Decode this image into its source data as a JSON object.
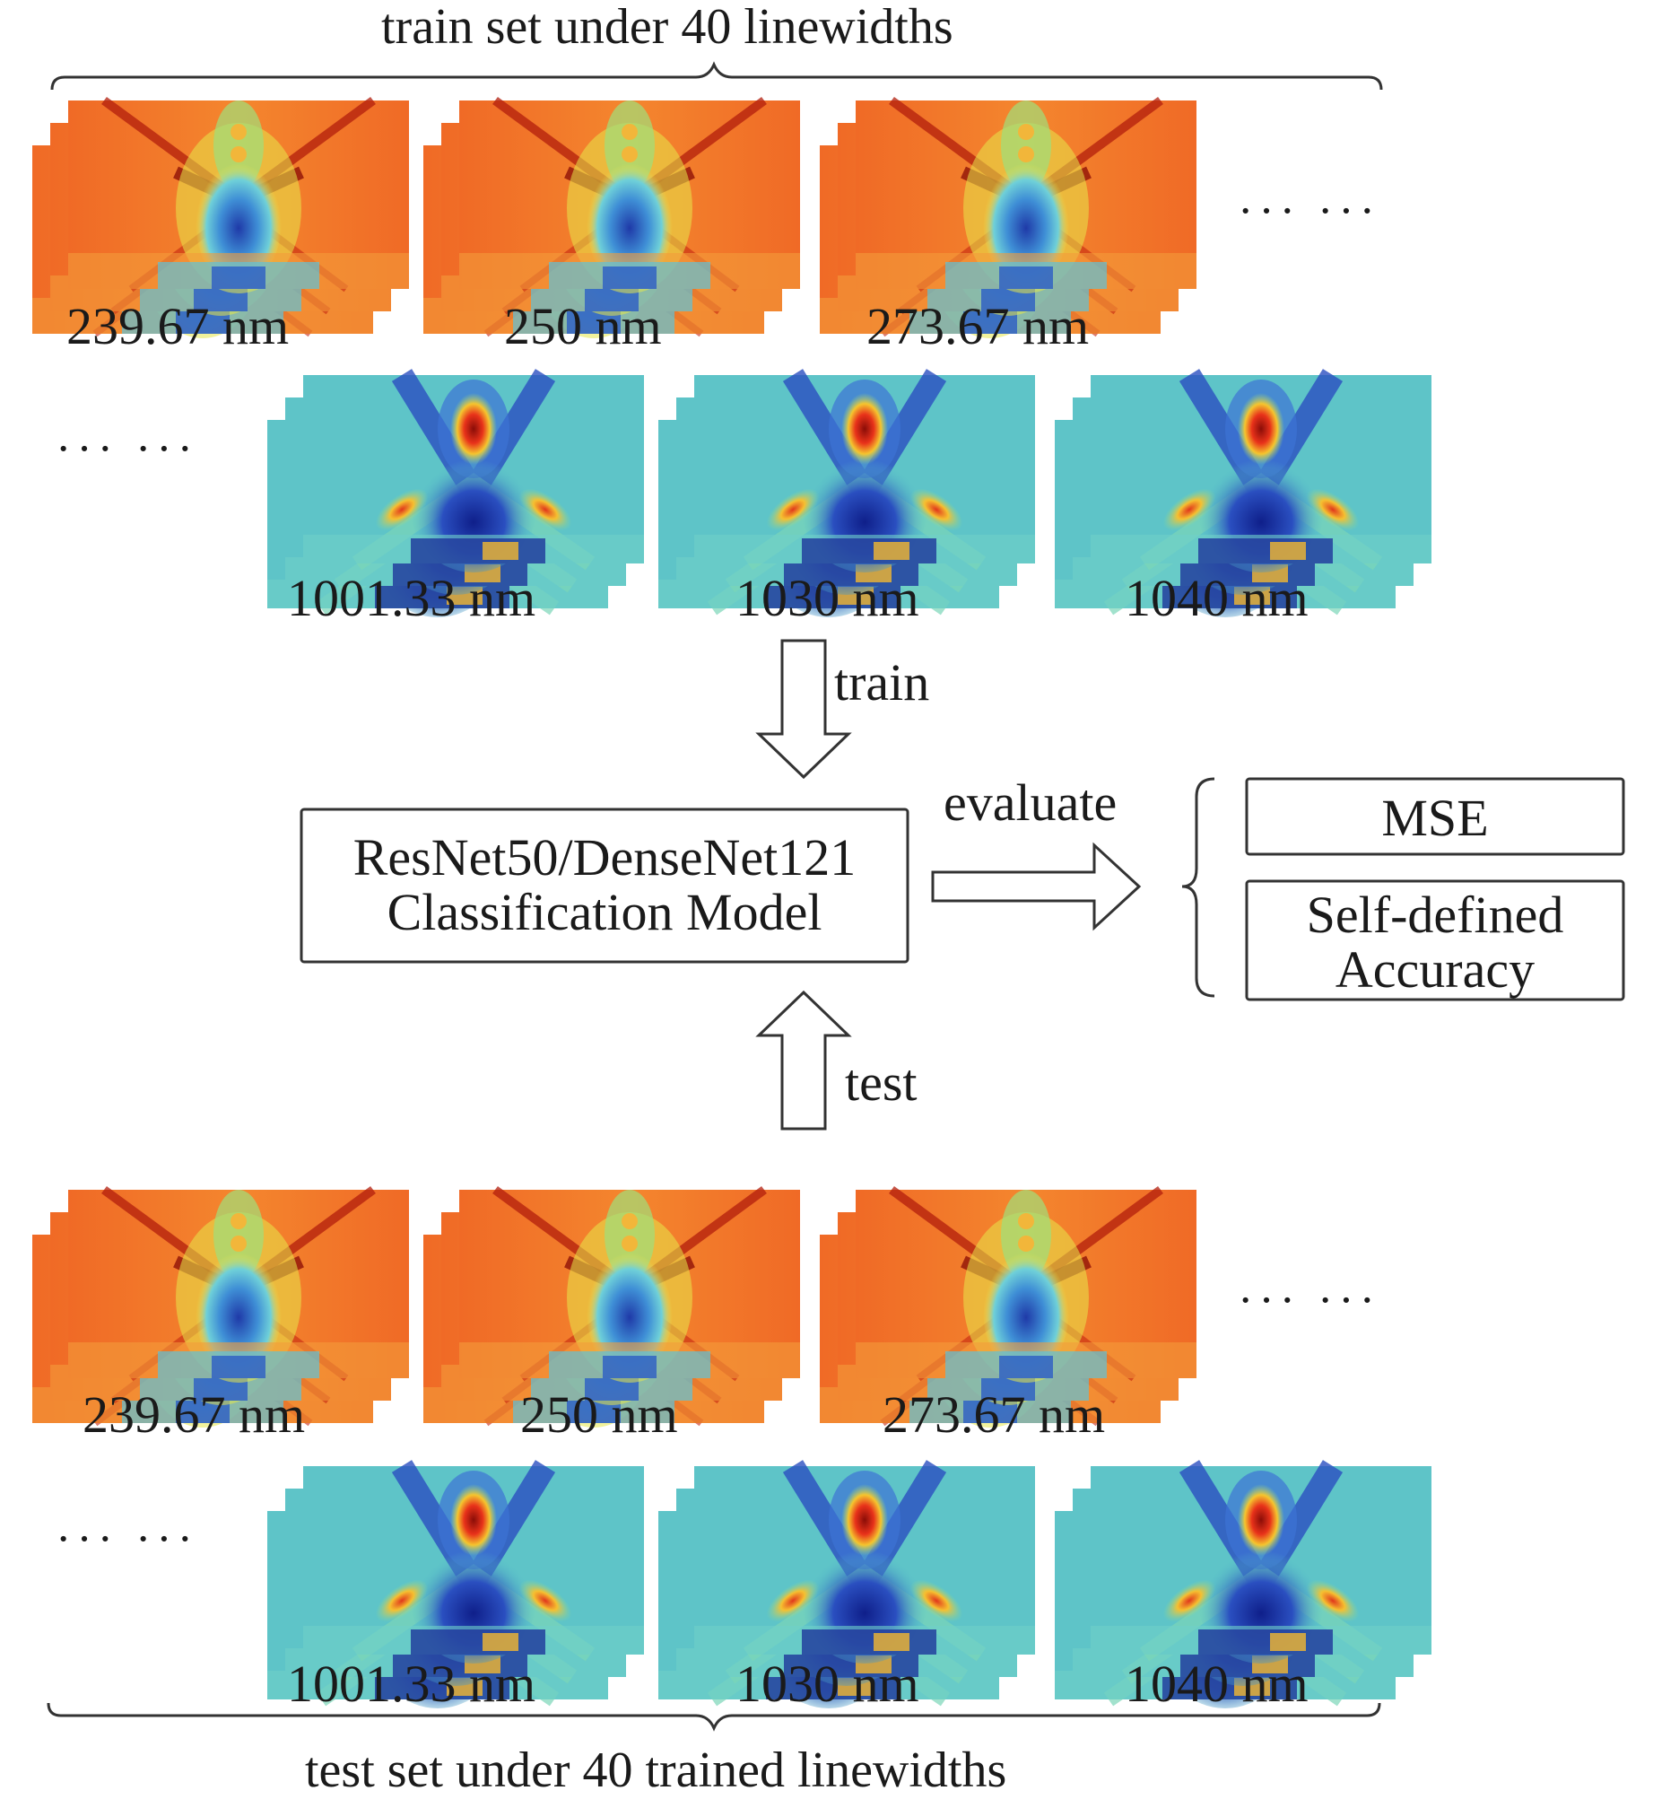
{
  "train_title": "train set under 40 linewidths",
  "test_title": "test set under 40 trained linewidths",
  "ellipsis": "··· ···",
  "train_row1_labels": [
    "239.67 nm",
    "250 nm",
    "273.67 nm"
  ],
  "train_row2_labels": [
    "1001.33 nm",
    "1030 nm",
    "1040 nm"
  ],
  "test_row1_labels": [
    "239.67 nm",
    "250 nm",
    "273.67 nm"
  ],
  "test_row2_labels": [
    "1001.33 nm",
    "1030 nm",
    "1040 nm"
  ],
  "arrow_train_label": "train",
  "arrow_test_label": "test",
  "arrow_evaluate_label": "evaluate",
  "model_box": {
    "line1": "ResNet50/DenseNet121",
    "line2": "Classification Model"
  },
  "metrics": {
    "mse": "MSE",
    "accuracy_line1": "Self-defined",
    "accuracy_line2": "Accuracy"
  },
  "colors": {
    "warm_field": "#f0742a",
    "cool_field": "#5cc6c8",
    "dark_blue": "#1b2f9e",
    "dark_red": "#b0170c"
  }
}
